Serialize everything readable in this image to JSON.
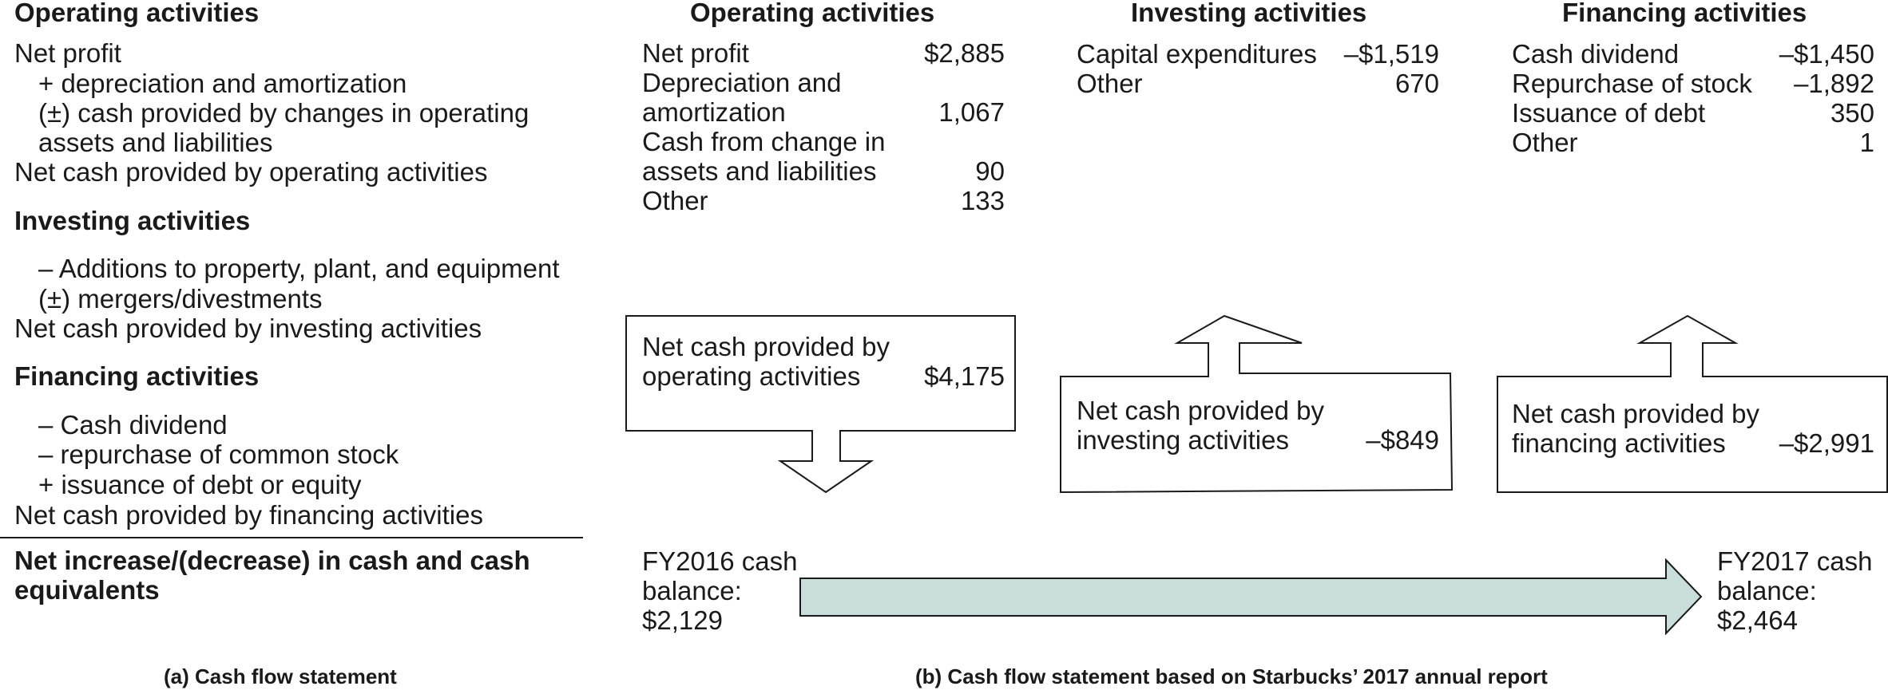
{
  "panel_a": {
    "operating_heading": "Operating activities",
    "net_profit": "Net profit",
    "depreciation": "+ depreciation and amortization",
    "cash_changes_1": "(±) cash provided by changes in operating",
    "cash_changes_2": "assets and liabilities",
    "net_operating": "Net cash provided by operating activities",
    "investing_heading": "Investing activities",
    "additions": "– Additions to property, plant, and equipment",
    "mergers": "(±) mergers/divestments",
    "net_investing": "Net cash provided by investing activities",
    "financing_heading": "Financing activities",
    "cash_dividend": "– Cash dividend",
    "repurchase": "– repurchase of common stock",
    "issuance": "+ issuance of debt or equity",
    "net_financing": "Net cash provided by financing activities",
    "net_increase_1": "Net increase/(decrease) in cash and cash",
    "net_increase_2": "equivalents",
    "caption": "(a) Cash flow statement"
  },
  "panel_b": {
    "caption": "(b) Cash flow statement based on Starbucks’ 2017 annual report",
    "operating": {
      "heading": "Operating activities",
      "net_profit_label": "Net profit",
      "net_profit_value": "$2,885",
      "dep_label_1": "Depreciation and",
      "dep_label_2": "amortization",
      "dep_value": "1,067",
      "cfc_label_1": "Cash from change in",
      "cfc_label_2": "assets and liabilities",
      "cfc_value": "90",
      "other_label": "Other",
      "other_value": "133",
      "box_label_1": "Net cash provided by",
      "box_label_2": "operating activities",
      "box_value": "$4,175"
    },
    "investing": {
      "heading": "Investing activities",
      "capex_label": "Capital expenditures",
      "capex_value": "–$1,519",
      "other_label": "Other",
      "other_value": "670",
      "box_label_1": "Net cash provided by",
      "box_label_2": "investing activities",
      "box_value": "–$849"
    },
    "financing": {
      "heading": "Financing activities",
      "dividend_label": "Cash dividend",
      "dividend_value": "–$1,450",
      "repurchase_label": "Repurchase of stock",
      "repurchase_value": "–1,892",
      "issuance_label": "Issuance of debt",
      "issuance_value": "350",
      "other_label": "Other",
      "other_value": "1",
      "box_label_1": "Net cash provided by",
      "box_label_2": "financing activities",
      "box_value": "–$2,991"
    },
    "balance": {
      "fy2016_1": "FY2016 cash",
      "fy2016_2": "balance:",
      "fy2016_3": "$2,129",
      "fy2017_1": "FY2017 cash",
      "fy2017_2": "balance:",
      "fy2017_3": "$2,464"
    }
  },
  "colors": {
    "balance_arrow_fill": "#c9ded8",
    "stroke": "#1a1a1a"
  }
}
